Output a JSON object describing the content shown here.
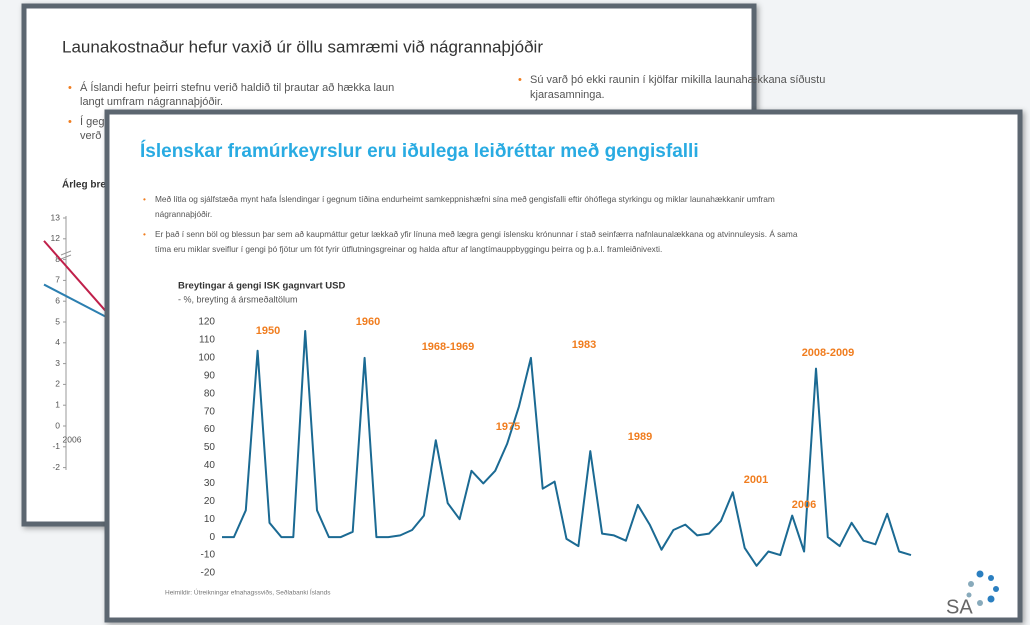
{
  "back_slide": {
    "title": "Launakostnaður hefur vaxið úr öllu samræmi við nágrannaþjóðir",
    "bullets_left": [
      [
        "Á Íslandi hefur þeirri stefnu verið haldið til þrautar að hækka laun",
        "langt umfram nágrannaþjóðir."
      ],
      [
        "Í geg",
        "verð"
      ]
    ],
    "bullets_right": [
      [
        "Sú varð þó ekki raunin í kjölfar mikilla launahækkana síðustu",
        "kjarasamninga."
      ]
    ],
    "chart": {
      "title": "Árleg bre",
      "yticks": [
        13,
        12,
        8,
        7,
        6,
        5,
        4,
        3,
        2,
        1,
        0,
        -1,
        -2
      ],
      "x_label": "2006",
      "series": [
        {
          "color": "#c0204a",
          "values": [
            11.6,
            5.4
          ]
        },
        {
          "color": "#2c7fb0",
          "values": [
            6.8,
            5.2
          ]
        }
      ]
    }
  },
  "front_slide": {
    "title": "Íslenskar framúrkeyrslur eru iðulega leiðréttar með gengisfalli",
    "bullets": [
      [
        "Með lítla og sjálfstæða mynt hafa Íslendingar í gegnum tíðina endurheimt samkeppnishæfni sína með gengisfalli eftir óhóflega styrkingu og miklar launahækkanir umfram",
        "nágrannaþjóðir."
      ],
      [
        "Er það í senn böl og blessun þar sem að kaupmáttur getur lækkað yfir línuna með lægra gengi íslensku krónunnar í stað seinfærra nafnlaunalækkana og atvinnuleysis. Á sama",
        "tíma eru miklar sveiflur í gengi þó fjötur um fót fyrir útflutningsgreinar og halda aftur af langtímauppbyggingu þeirra og þ.a.l. framleiðnivexti."
      ]
    ],
    "source": "Heimildir: Útreikningar efnahagssviðs, Seðlabanki Íslands",
    "logo": "SA"
  },
  "chart_data": {
    "type": "line",
    "title": "Breytingar á gengi ISK gagnvart USD",
    "subtitle": "- %, breyting á ársmeðaltölum",
    "color": "#1b6a93",
    "values": [
      0,
      0,
      15,
      104,
      8,
      0,
      0,
      115,
      15,
      0,
      0,
      3,
      100,
      0,
      0,
      1,
      4,
      12,
      54,
      19,
      10,
      37,
      30,
      37,
      52,
      73,
      100,
      27,
      31,
      -1,
      -5,
      48,
      2,
      1,
      -2,
      18,
      7,
      -7,
      4,
      7,
      1,
      2,
      9,
      25,
      -6,
      -16,
      -8,
      -10,
      12,
      -8,
      94,
      0,
      -5,
      8,
      -2,
      -4,
      13,
      -8,
      -10
    ],
    "ylim": [
      -20,
      120
    ],
    "yticks": [
      -20,
      -10,
      0,
      10,
      20,
      30,
      40,
      50,
      60,
      70,
      80,
      90,
      100,
      110,
      120
    ],
    "annotations": [
      "1950",
      "1960",
      "1968-1969",
      "1975",
      "1983",
      "1989",
      "2001",
      "2006",
      "2008-2009"
    ],
    "annotation_color": "#f07d1f"
  }
}
